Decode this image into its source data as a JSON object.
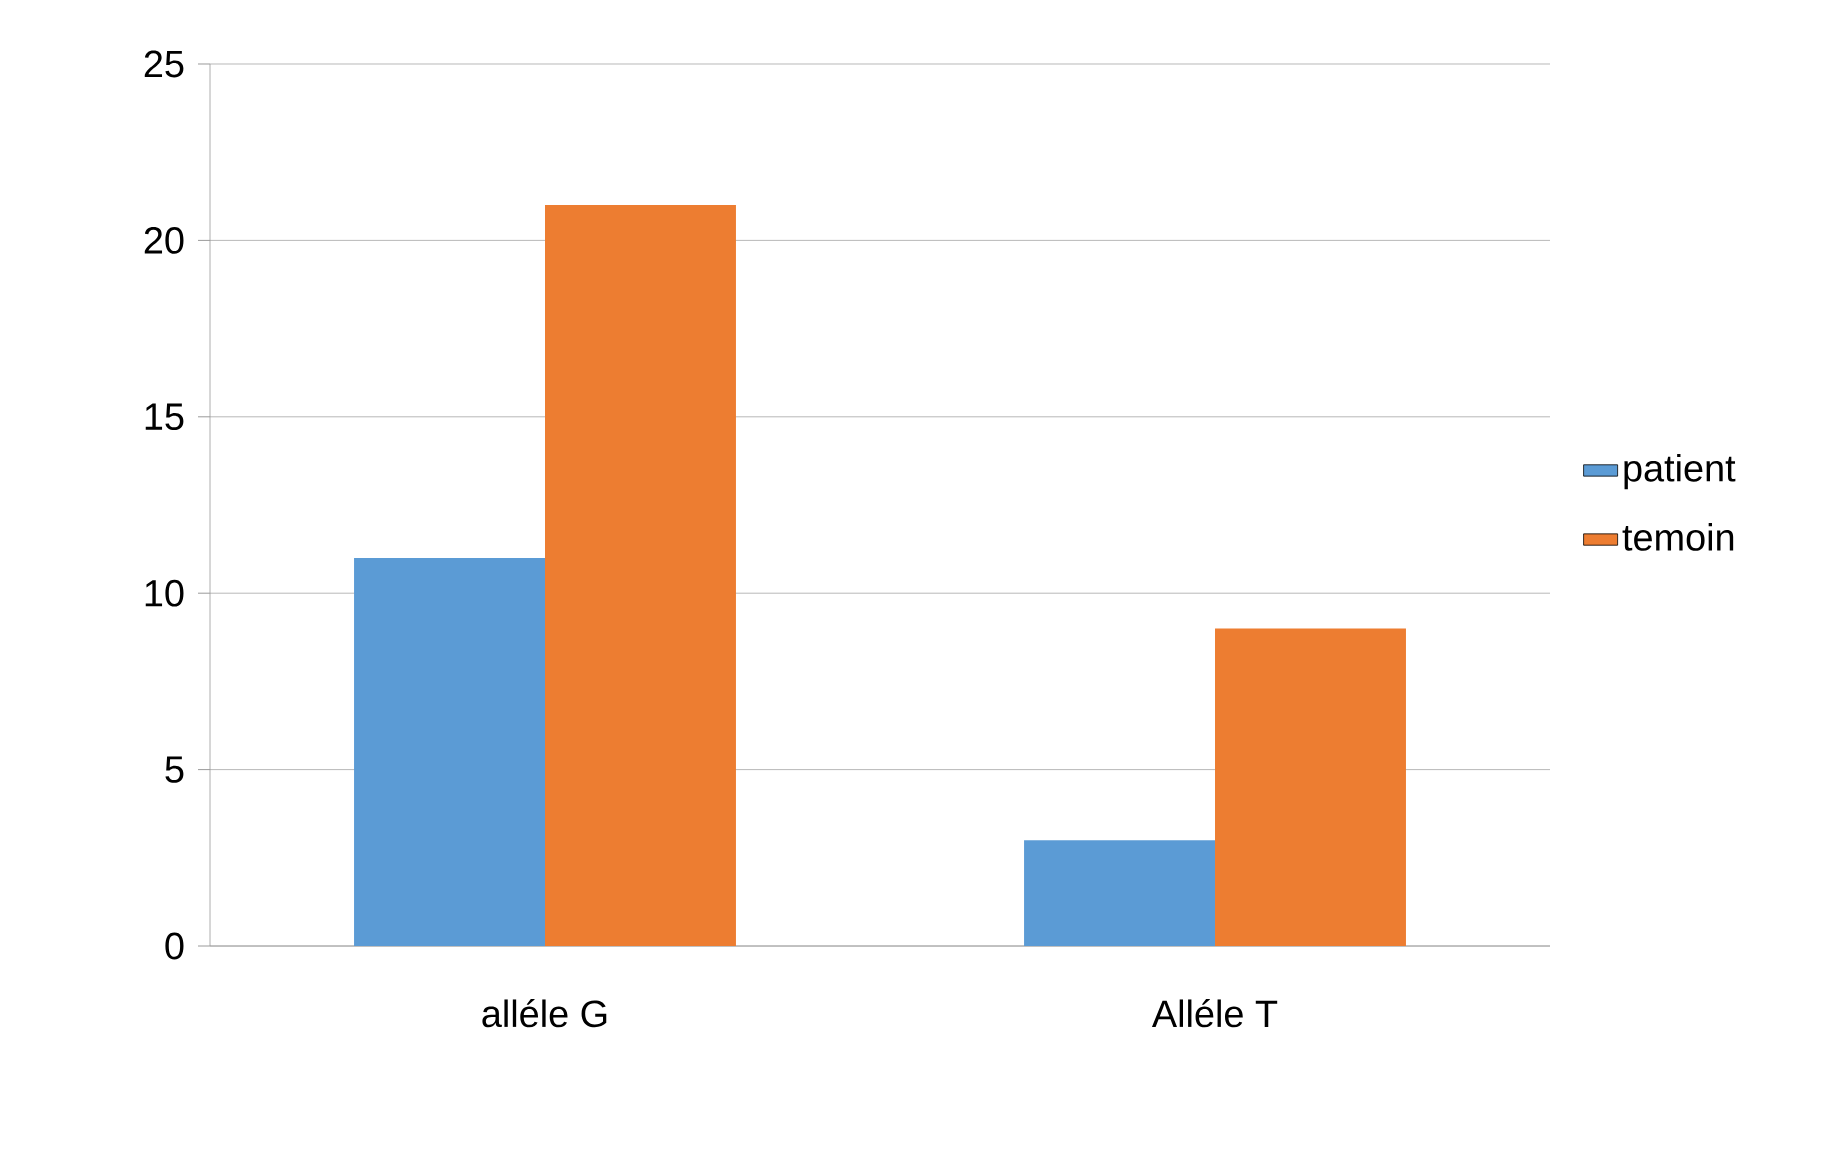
{
  "chart_data": {
    "type": "bar",
    "categories": [
      "alléle G",
      "Alléle T"
    ],
    "series": [
      {
        "name": "patient",
        "color": "#5b9bd5",
        "values": [
          11,
          3
        ]
      },
      {
        "name": "temoin",
        "color": "#ed7d31",
        "values": [
          21,
          9
        ]
      }
    ],
    "ylim": [
      0,
      25
    ],
    "yticks": [
      0,
      5,
      10,
      15,
      20,
      25
    ],
    "grid": "y",
    "legend": "right"
  }
}
